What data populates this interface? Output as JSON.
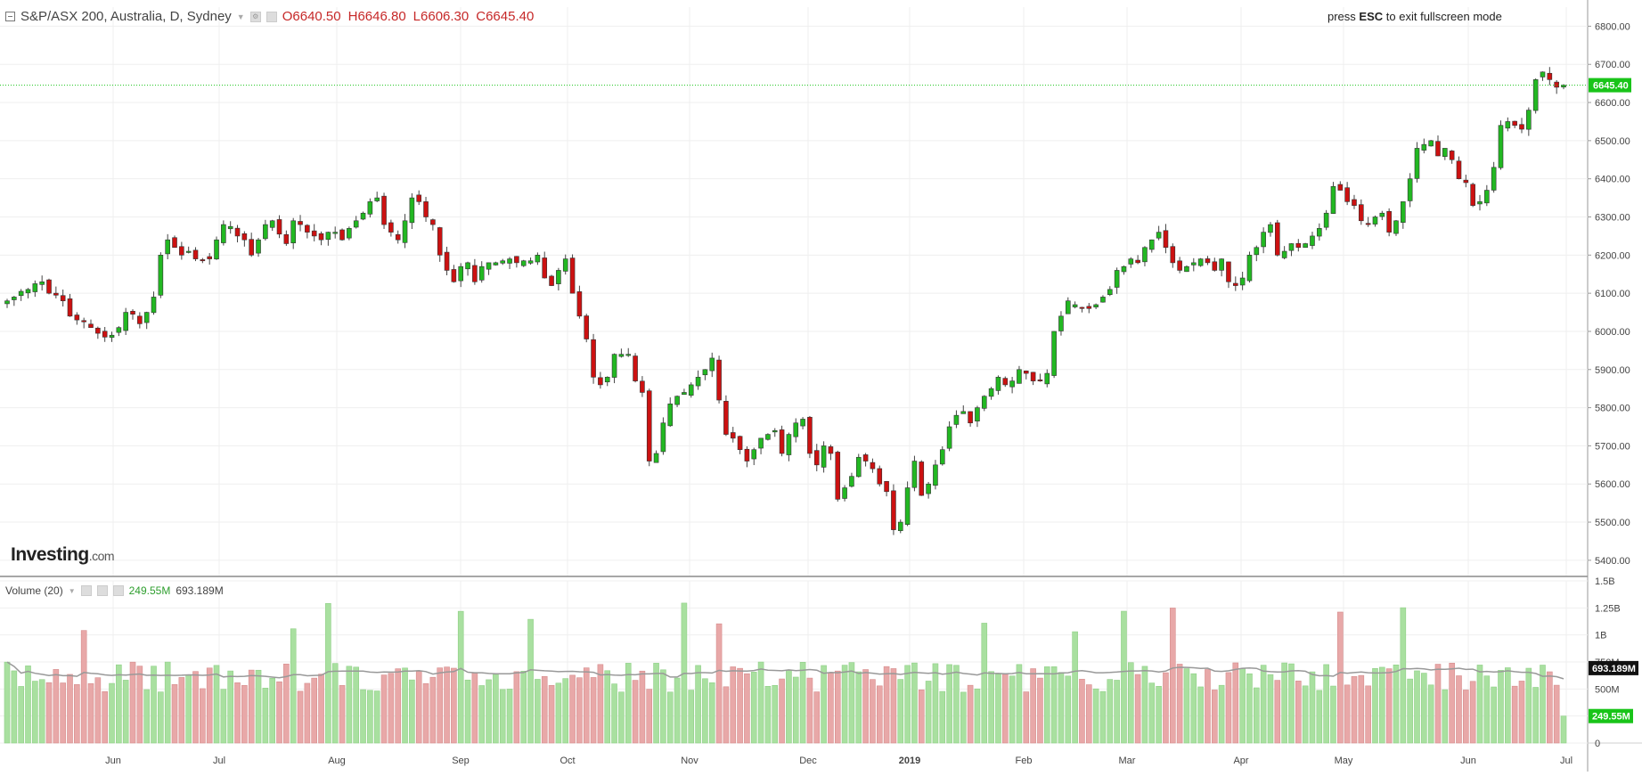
{
  "header": {
    "symbol": "S&P/ASX 200, Australia, D, Sydney",
    "open": "O6640.50",
    "high": "H6646.80",
    "low": "L6606.30",
    "close": "C6645.40",
    "esc_press": "press",
    "esc_key": "ESC",
    "esc_rest": "to exit fullscreen mode"
  },
  "volume_header": {
    "label": "Volume (20)",
    "volume": "249.55M",
    "ma": "693.189M"
  },
  "logo": {
    "main": "Investing",
    "suffix": ".com"
  },
  "colors": {
    "up": "#22b822",
    "down": "#cc1111",
    "vol_up": "#a9e0a0",
    "vol_down": "#e8a8a8",
    "ma": "#999999",
    "last_price": "#19c419"
  },
  "chart_data": [
    {
      "type": "candlestick",
      "title": "S&P/ASX 200, Australia, D, Sydney",
      "x_ticks": [
        "Jun",
        "Jul",
        "Aug",
        "Sep",
        "Oct",
        "Nov",
        "Dec",
        "2019",
        "Feb",
        "Mar",
        "Apr",
        "May",
        "Jun",
        "Jul"
      ],
      "y_ticks": [
        "5400.00",
        "5500.00",
        "5600.00",
        "5700.00",
        "5800.00",
        "5900.00",
        "6000.00",
        "6100.00",
        "6200.00",
        "6300.00",
        "6400.00",
        "6500.00",
        "6600.00",
        "6700.00",
        "6800.00"
      ],
      "ylim": [
        5360,
        6850
      ],
      "last_price_label": "6645.40",
      "last_price": 6645.4,
      "close": [
        6080,
        6090,
        6105,
        6110,
        6125,
        6130,
        6100,
        6095,
        6080,
        6040,
        6030,
        6025,
        6010,
        5995,
        5985,
        5990,
        6010,
        6050,
        6045,
        6020,
        6050,
        6090,
        6200,
        6240,
        6220,
        6200,
        6210,
        6190,
        6185,
        6190,
        6240,
        6280,
        6275,
        6250,
        6240,
        6200,
        6240,
        6280,
        6290,
        6255,
        6230,
        6290,
        6280,
        6260,
        6250,
        6240,
        6260,
        6260,
        6240,
        6270,
        6290,
        6310,
        6340,
        6350,
        6280,
        6260,
        6240,
        6290,
        6350,
        6340,
        6300,
        6280,
        6200,
        6160,
        6130,
        6170,
        6180,
        6130,
        6170,
        6180,
        6180,
        6185,
        6190,
        6180,
        6185,
        6185,
        6200,
        6140,
        6120,
        6160,
        6190,
        6100,
        6040,
        5980,
        5880,
        5860,
        5880,
        5940,
        5940,
        5940,
        5870,
        5840,
        5660,
        5680,
        5760,
        5810,
        5830,
        5840,
        5860,
        5880,
        5900,
        5930,
        5820,
        5730,
        5720,
        5690,
        5660,
        5690,
        5720,
        5730,
        5740,
        5680,
        5730,
        5760,
        5770,
        5680,
        5650,
        5700,
        5680,
        5560,
        5590,
        5620,
        5670,
        5660,
        5640,
        5600,
        5580,
        5480,
        5500,
        5590,
        5660,
        5570,
        5600,
        5650,
        5690,
        5750,
        5780,
        5790,
        5760,
        5800,
        5830,
        5850,
        5880,
        5860,
        5870,
        5900,
        5890,
        5870,
        5870,
        5890,
        6000,
        6040,
        6080,
        6070,
        6060,
        6060,
        6070,
        6090,
        6110,
        6160,
        6170,
        6190,
        6180,
        6220,
        6240,
        6260,
        6220,
        6180,
        6160,
        6170,
        6180,
        6190,
        6180,
        6160,
        6190,
        6130,
        6120,
        6140,
        6200,
        6220,
        6260,
        6280,
        6200,
        6210,
        6230,
        6220,
        6230,
        6250,
        6270,
        6310,
        6380,
        6370,
        6340,
        6330,
        6290,
        6280,
        6300,
        6310,
        6260,
        6290,
        6340,
        6400,
        6480,
        6490,
        6500,
        6460,
        6480,
        6450,
        6400,
        6390,
        6330,
        6340,
        6370,
        6430,
        6540,
        6550,
        6540,
        6530,
        6580,
        6660,
        6680,
        6660,
        6640,
        6645.4
      ],
      "volume_yticks": [
        "0",
        "250M",
        "500M",
        "750M",
        "1B",
        "1.25B",
        "1.5B"
      ],
      "volume_ylim": [
        0,
        1500000000
      ],
      "volume_last_label": "249.55M",
      "volume_ma_label": "693.189M"
    }
  ]
}
